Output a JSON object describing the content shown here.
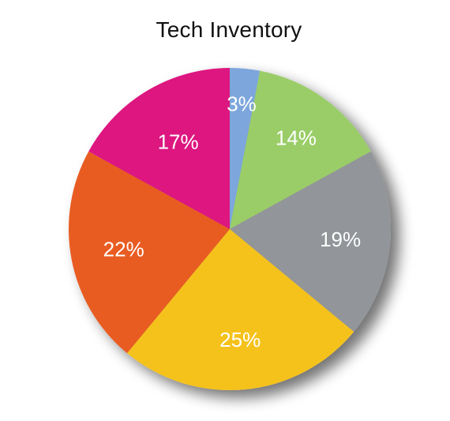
{
  "chart_data": {
    "type": "pie",
    "title": "Tech Inventory",
    "start_angle_deg": 0,
    "direction": "clockwise",
    "slices": [
      {
        "label": "3%",
        "value": 3,
        "color": "#7BA6DC"
      },
      {
        "label": "14%",
        "value": 14,
        "color": "#9ACD68"
      },
      {
        "label": "19%",
        "value": 19,
        "color": "#929599"
      },
      {
        "label": "25%",
        "value": 25,
        "color": "#F5C21B"
      },
      {
        "label": "22%",
        "value": 22,
        "color": "#E85C24"
      },
      {
        "label": "17%",
        "value": 17,
        "color": "#DD1480"
      }
    ]
  }
}
